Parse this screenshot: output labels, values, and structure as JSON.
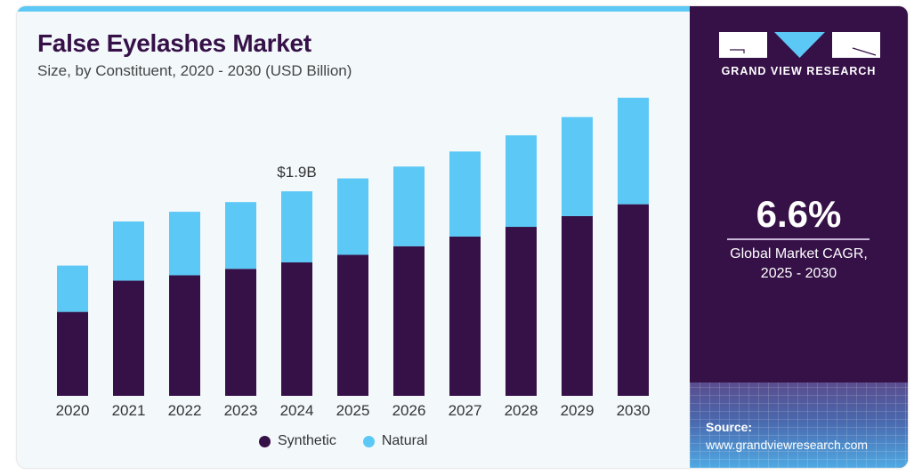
{
  "header": {
    "title": "False Eyelashes Market",
    "subtitle": "Size, by Constituent, 2020 - 2030 (USD Billion)"
  },
  "colors": {
    "synthetic": "#361148",
    "natural": "#5bc8f5",
    "panel": "#361148",
    "accent": "#5bc8f5"
  },
  "chart_data": {
    "type": "bar",
    "stacked": true,
    "title": "False Eyelashes Market",
    "subtitle": "Size, by Constituent, 2020 - 2030 (USD Billion)",
    "xlabel": "",
    "ylabel": "USD Billion",
    "ylim": [
      0,
      2.9
    ],
    "grid": false,
    "legend_position": "bottom",
    "categories": [
      "2020",
      "2021",
      "2022",
      "2023",
      "2024",
      "2025",
      "2026",
      "2027",
      "2028",
      "2029",
      "2030"
    ],
    "series": [
      {
        "name": "Synthetic",
        "color": "#361148",
        "values": [
          0.78,
          1.07,
          1.12,
          1.18,
          1.24,
          1.31,
          1.39,
          1.48,
          1.57,
          1.67,
          1.78
        ]
      },
      {
        "name": "Natural",
        "color": "#5bc8f5",
        "values": [
          0.43,
          0.55,
          0.59,
          0.62,
          0.66,
          0.71,
          0.74,
          0.79,
          0.85,
          0.92,
          0.99
        ]
      }
    ],
    "annotations": [
      {
        "category": "2024",
        "text": "$1.9B"
      }
    ]
  },
  "legend": {
    "items": [
      {
        "label": "Synthetic",
        "color": "#361148"
      },
      {
        "label": "Natural",
        "color": "#5bc8f5"
      }
    ]
  },
  "side_panel": {
    "brand": "GRAND VIEW RESEARCH",
    "cagr_value": "6.6%",
    "cagr_label_line1": "Global Market CAGR,",
    "cagr_label_line2": "2025 - 2030",
    "source_title": "Source:",
    "source_url": "www.grandviewresearch.com"
  }
}
